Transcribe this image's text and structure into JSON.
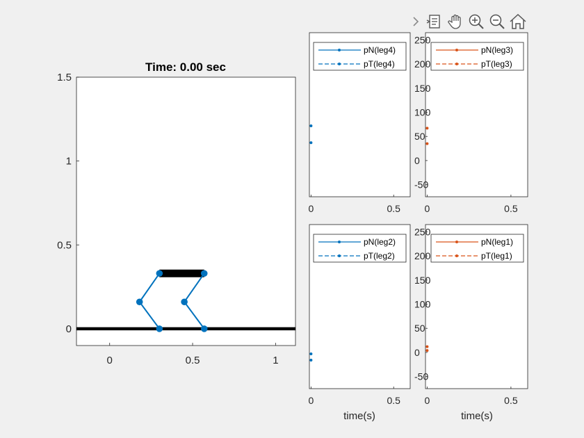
{
  "toolbar": {
    "icons": [
      "chevron-right-icon",
      "data-tips-icon",
      "pan-hand-icon",
      "zoom-in-icon",
      "zoom-out-icon",
      "home-icon"
    ]
  },
  "chart_data": [
    {
      "type": "line",
      "title": "Time: 0.00 sec",
      "xlim": [
        -0.2,
        1.12
      ],
      "ylim": [
        -0.1,
        1.5
      ],
      "xticks": [
        0,
        0.5,
        1
      ],
      "yticks": [
        0,
        0.5,
        1,
        1.5
      ],
      "xtick_labels": [
        "0",
        "0.5",
        "1"
      ],
      "ytick_labels": [
        "0",
        "0.5",
        "1",
        "1.5"
      ],
      "grid": false,
      "ground": {
        "x": [
          -0.2,
          1.12
        ],
        "y": [
          0,
          0
        ],
        "color": "#000000"
      },
      "body": {
        "x": [
          0.3,
          0.57
        ],
        "y": [
          0.33,
          0.33
        ],
        "color": "#000000"
      },
      "legs": [
        {
          "x": [
            0.3,
            0.18,
            0.3
          ],
          "y": [
            0.33,
            0.16,
            0.0
          ],
          "color": "#0072bd"
        },
        {
          "x": [
            0.57,
            0.45,
            0.57
          ],
          "y": [
            0.33,
            0.16,
            0.0
          ],
          "color": "#0072bd"
        }
      ]
    },
    {
      "type": "line",
      "xlim": [
        -0.01,
        0.6
      ],
      "ylim": [
        -75,
        265
      ],
      "xtick_labels": [
        "0",
        "0.5"
      ],
      "ytick_labels": [],
      "xlabel": "",
      "legend_position": "top-right",
      "series": [
        {
          "name": "pN(leg4)",
          "style": "solid",
          "color": "#0072bd",
          "x": [
            0
          ],
          "y": [
            72
          ]
        },
        {
          "name": "pT(leg4)",
          "style": "dashed",
          "color": "#0072bd",
          "x": [
            0
          ],
          "y": [
            37
          ]
        }
      ]
    },
    {
      "type": "line",
      "xlim": [
        -0.01,
        0.6
      ],
      "ylim": [
        -75,
        265
      ],
      "yticks": [
        -50,
        0,
        50,
        100,
        150,
        200,
        250
      ],
      "ytick_labels": [
        "-50",
        "0",
        "50",
        "100",
        "150",
        "200",
        "250"
      ],
      "xtick_labels": [
        "0",
        "0.5"
      ],
      "xlabel": "",
      "legend_position": "top-right",
      "series": [
        {
          "name": "pN(leg3)",
          "style": "solid",
          "color": "#d95319",
          "x": [
            0
          ],
          "y": [
            67
          ]
        },
        {
          "name": "pT(leg3)",
          "style": "dashed",
          "color": "#d95319",
          "x": [
            0
          ],
          "y": [
            35
          ]
        }
      ]
    },
    {
      "type": "line",
      "xlim": [
        -0.01,
        0.6
      ],
      "ylim": [
        -75,
        265
      ],
      "xtick_labels": [
        "0",
        "0.5"
      ],
      "ytick_labels": [],
      "xlabel": "time(s)",
      "legend_position": "top-right",
      "series": [
        {
          "name": "pN(leg2)",
          "style": "solid",
          "color": "#0072bd",
          "x": [
            0
          ],
          "y": [
            -3
          ]
        },
        {
          "name": "pT(leg2)",
          "style": "dashed",
          "color": "#0072bd",
          "x": [
            0
          ],
          "y": [
            -16
          ]
        }
      ]
    },
    {
      "type": "line",
      "xlim": [
        -0.01,
        0.6
      ],
      "ylim": [
        -75,
        265
      ],
      "yticks": [
        -50,
        0,
        50,
        100,
        150,
        200,
        250
      ],
      "ytick_labels": [
        "-50",
        "0",
        "50",
        "100",
        "150",
        "200",
        "250"
      ],
      "xtick_labels": [
        "0",
        "0.5"
      ],
      "xlabel": "time(s)",
      "legend_position": "top-right",
      "series": [
        {
          "name": "pN(leg1)",
          "style": "solid",
          "color": "#d95319",
          "x": [
            0
          ],
          "y": [
            12
          ]
        },
        {
          "name": "pT(leg1)",
          "style": "dashed",
          "color": "#d95319",
          "x": [
            0
          ],
          "y": [
            4
          ]
        }
      ]
    }
  ]
}
